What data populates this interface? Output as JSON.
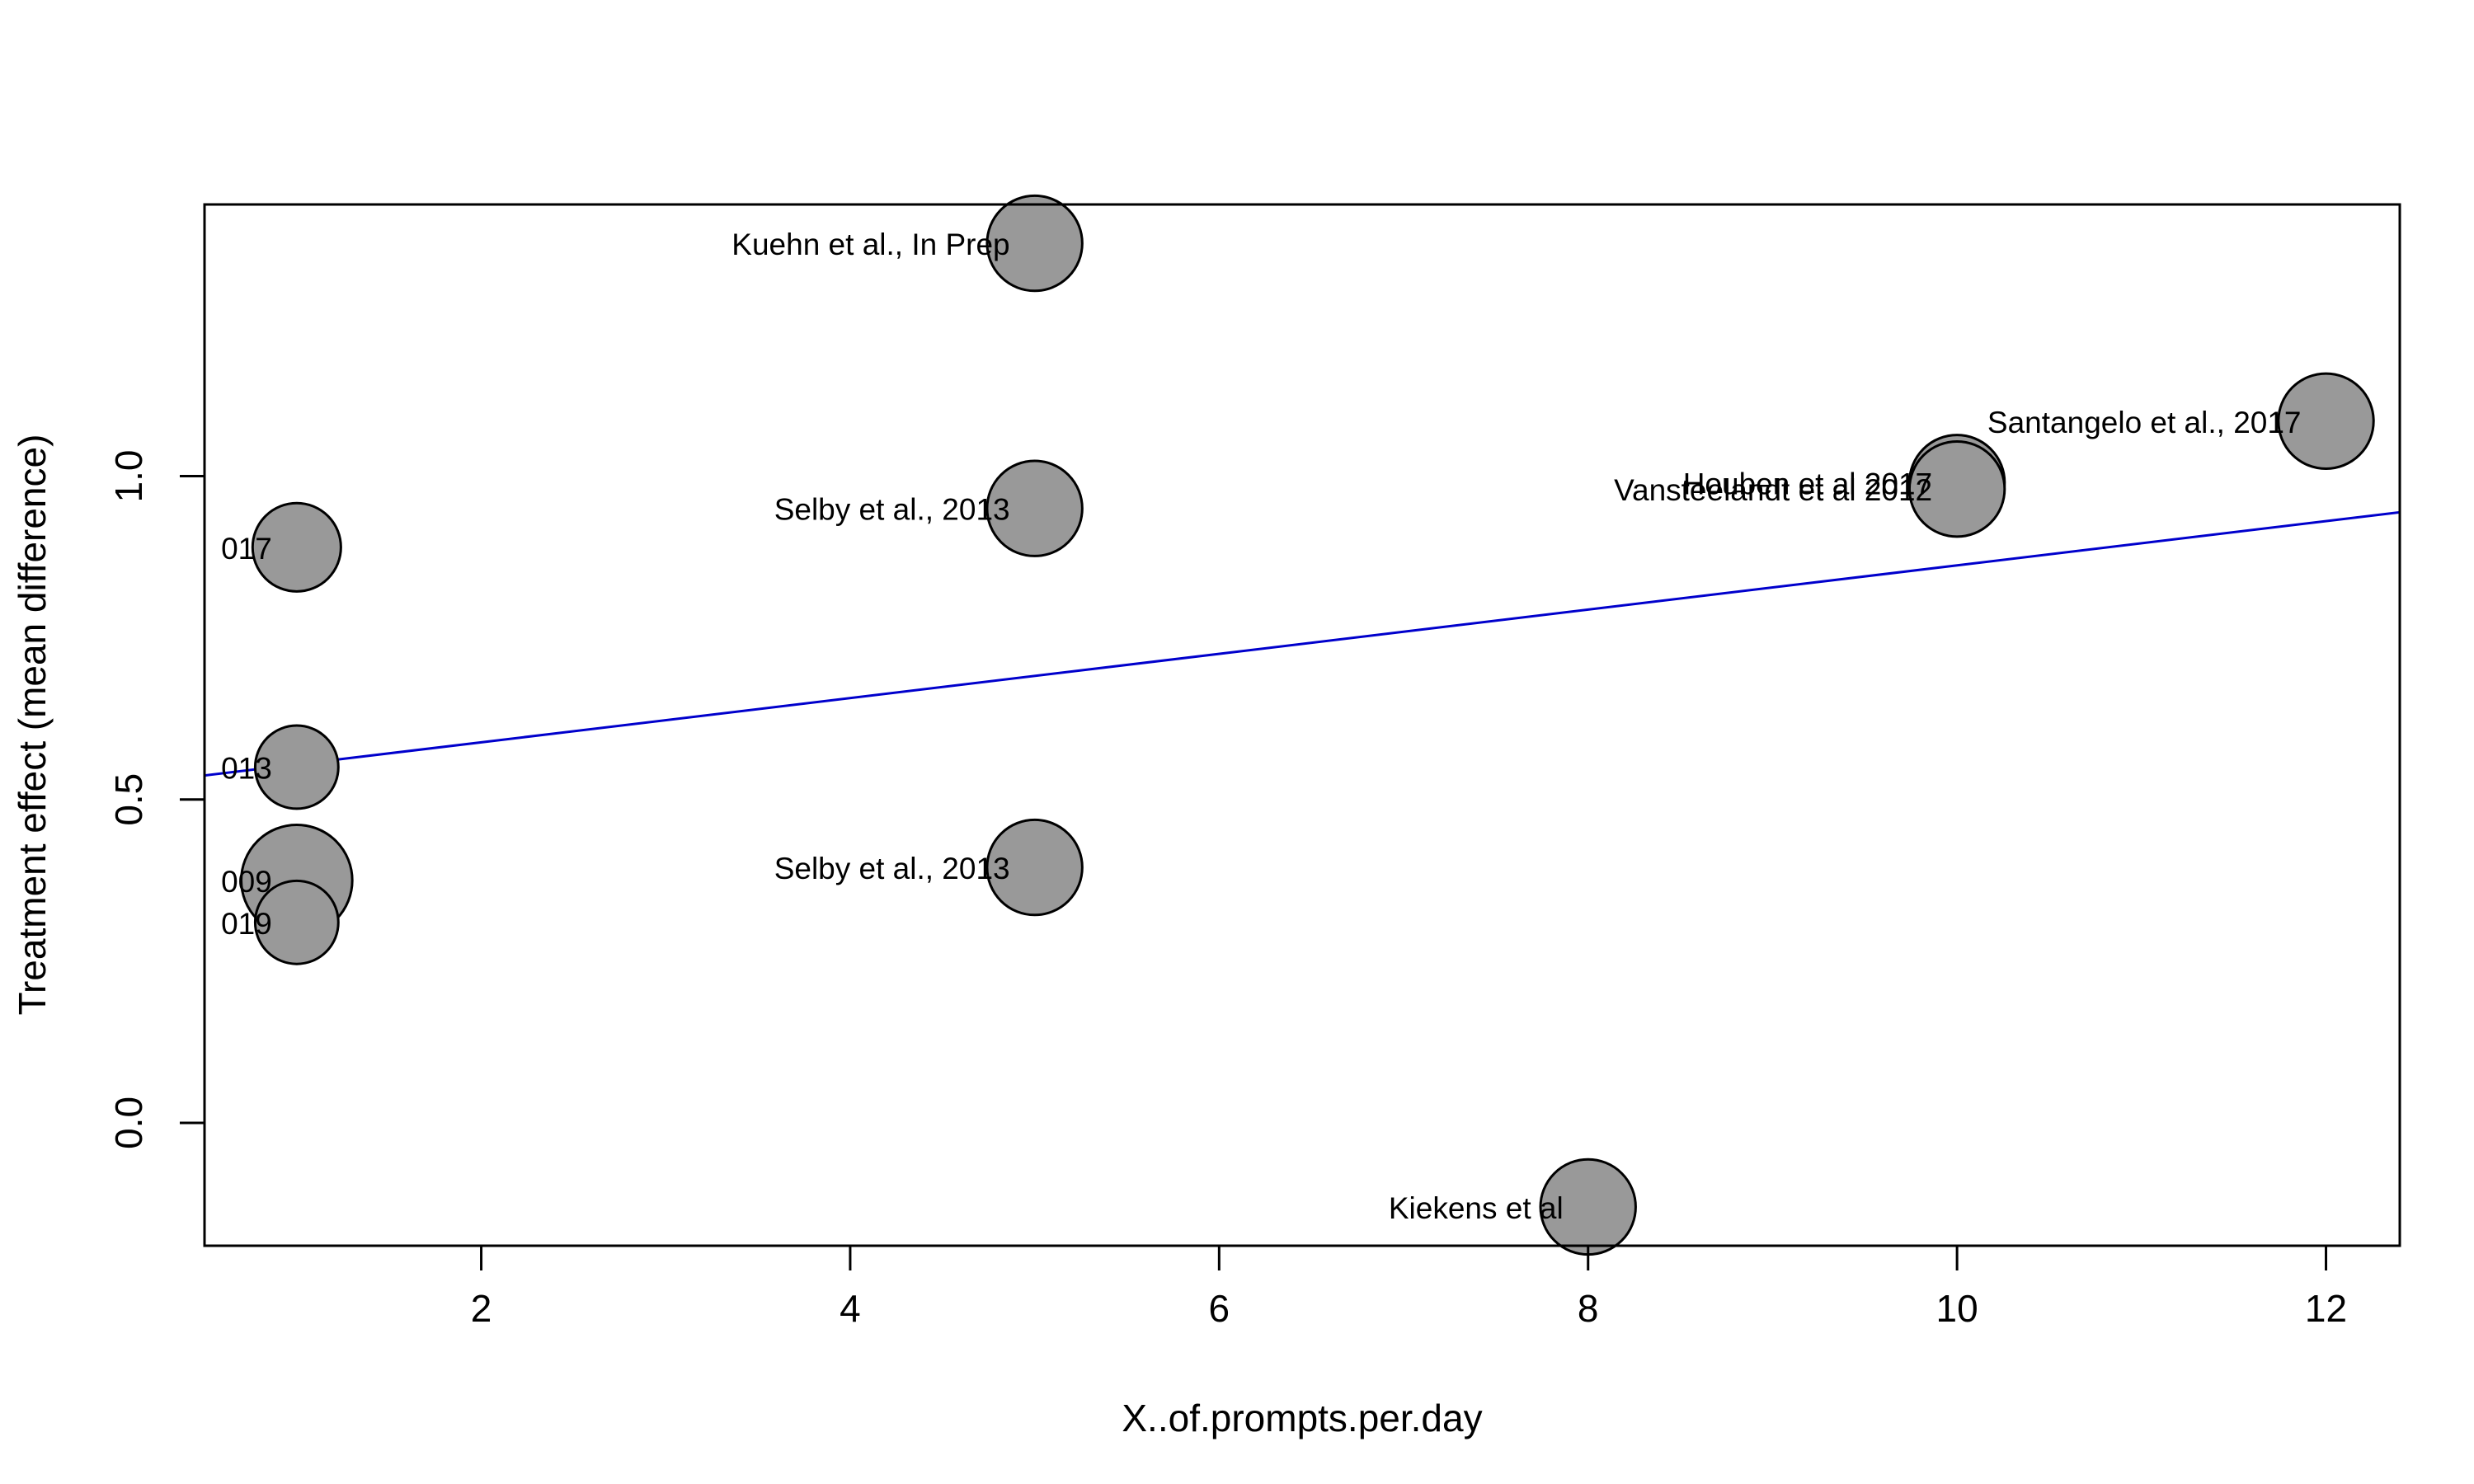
{
  "chart_data": {
    "type": "scatter",
    "title": "",
    "xlabel": "X..of.prompts.per.day",
    "ylabel": "Treatment effect (mean difference)",
    "xlim": [
      0.5,
      12.4
    ],
    "ylim": [
      -0.19,
      1.42
    ],
    "xticks": [
      2,
      4,
      6,
      8,
      10,
      12
    ],
    "yticks": [
      0.0,
      0.5,
      1.0
    ],
    "xtick_labels": [
      "2",
      "4",
      "6",
      "8",
      "10",
      "12"
    ],
    "ytick_labels": [
      "0.0",
      "0.5",
      "1.0"
    ],
    "grid": false,
    "legend": "none",
    "colors": {
      "point_fill": "#999999",
      "point_stroke": "#000000",
      "regression_line": "#0000cc"
    },
    "regression_line": {
      "intercept": 0.52,
      "slope": 0.0342
    },
    "points": [
      {
        "x": 1,
        "y": 0.89,
        "weight": 0.62,
        "label": "017"
      },
      {
        "x": 1,
        "y": 0.55,
        "weight": 0.55,
        "label": "013"
      },
      {
        "x": 1,
        "y": 0.375,
        "weight": 0.98,
        "label": "009"
      },
      {
        "x": 1,
        "y": 0.31,
        "weight": 0.55,
        "label": "019"
      },
      {
        "x": 5,
        "y": 1.36,
        "weight": 0.72,
        "label": "Kuehn et al., In Prep"
      },
      {
        "x": 5,
        "y": 0.95,
        "weight": 0.72,
        "label": "Selby et al., 2013"
      },
      {
        "x": 5,
        "y": 0.395,
        "weight": 0.72,
        "label": "Selby et al., 2013"
      },
      {
        "x": 8,
        "y": -0.13,
        "weight": 0.72,
        "label": "Kiekens et al"
      },
      {
        "x": 10,
        "y": 0.99,
        "weight": 0.72,
        "label": "Houben et al 2017"
      },
      {
        "x": 10,
        "y": 0.98,
        "weight": 0.72,
        "label": "Vansteelandt et al 2012"
      },
      {
        "x": 12,
        "y": 1.085,
        "weight": 0.72,
        "label": "Santangelo et al., 2017"
      }
    ]
  }
}
